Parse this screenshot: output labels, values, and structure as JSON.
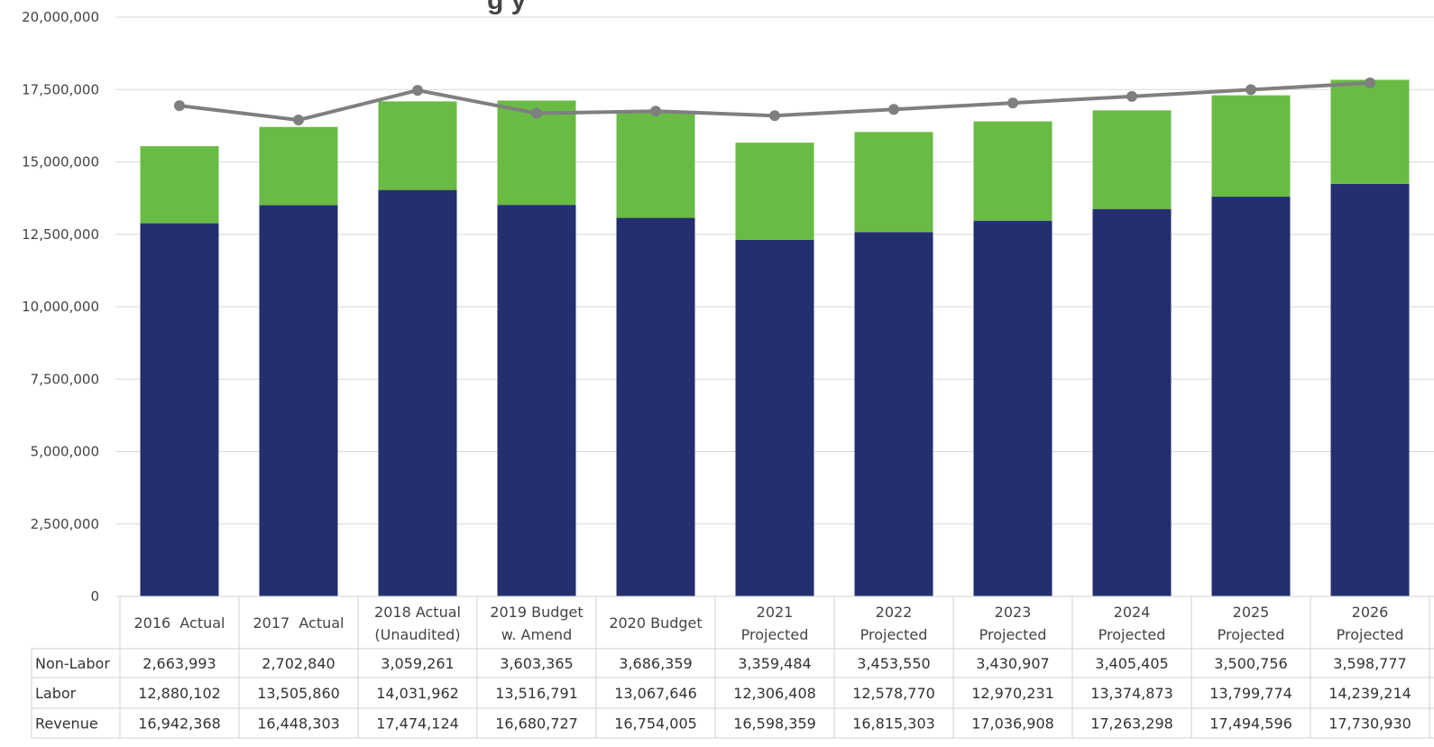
{
  "chart_data": {
    "type": "bar",
    "title_fragment": "g   y",
    "categories": [
      [
        "2016  Actual"
      ],
      [
        "2017  Actual"
      ],
      [
        "2018 Actual",
        "(Unaudited)"
      ],
      [
        "2019 Budget",
        "w. Amend"
      ],
      [
        "2020 Budget"
      ],
      [
        "2021",
        "Projected"
      ],
      [
        "2022",
        "Projected"
      ],
      [
        "2023",
        "Projected"
      ],
      [
        "2024",
        "Projected"
      ],
      [
        "2025",
        "Projected"
      ],
      [
        "2026",
        "Projected"
      ]
    ],
    "series": [
      {
        "name": "Labor",
        "kind": "stacked-bar",
        "color": "#232f6e",
        "values": [
          12880102,
          13505860,
          14031962,
          13516791,
          13067646,
          12306408,
          12578770,
          12970231,
          13374873,
          13799774,
          14239214
        ],
        "labels": [
          "12,880,102",
          "13,505,860",
          "14,031,962",
          "13,516,791",
          "13,067,646",
          "12,306,408",
          "12,578,770",
          "12,970,231",
          "13,374,873",
          "13,799,774",
          "14,239,214"
        ]
      },
      {
        "name": "Non-Labor",
        "kind": "stacked-bar",
        "color": "#6abb45",
        "values": [
          2663993,
          2702840,
          3059261,
          3603365,
          3686359,
          3359484,
          3453550,
          3430907,
          3405405,
          3500756,
          3598777
        ],
        "labels": [
          "2,663,993",
          "2,702,840",
          "3,059,261",
          "3,603,365",
          "3,686,359",
          "3,359,484",
          "3,453,550",
          "3,430,907",
          "3,405,405",
          "3,500,756",
          "3,598,777"
        ]
      },
      {
        "name": "Revenue",
        "kind": "line",
        "color": "#7f7f7f",
        "values": [
          16942368,
          16448303,
          17474124,
          16680727,
          16754005,
          16598359,
          16815303,
          17036908,
          17263298,
          17494596,
          17730930
        ],
        "labels": [
          "16,942,368",
          "16,448,303",
          "17,474,124",
          "16,680,727",
          "16,754,005",
          "16,598,359",
          "16,815,303",
          "17,036,908",
          "17,263,298",
          "17,494,596",
          "17,730,930"
        ]
      }
    ],
    "table_rows": [
      "Non-Labor",
      "Labor",
      "Revenue"
    ],
    "ylim": [
      0,
      20000000
    ],
    "yticks": [
      0,
      2500000,
      5000000,
      7500000,
      10000000,
      12500000,
      15000000,
      17500000,
      20000000
    ],
    "ytick_labels": [
      "0",
      "2,500,000",
      "5,000,000",
      "7,500,000",
      "10,000,000",
      "12,500,000",
      "15,000,000",
      "17,500,000",
      "20,000,000"
    ],
    "grid": true,
    "colors": {
      "grid": "#d9d9d9",
      "table_border": "#d0d0d0"
    }
  }
}
